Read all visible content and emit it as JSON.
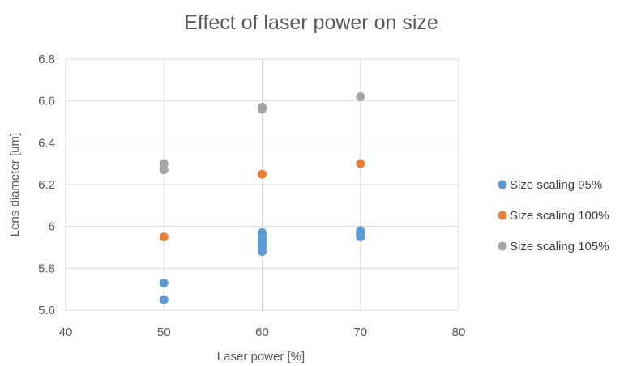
{
  "chart_data": {
    "type": "scatter",
    "title": "Effect of laser power on size",
    "xlabel": "Laser power  [%]",
    "ylabel": "Lens diameter  [um]",
    "xlim": [
      40,
      80
    ],
    "ylim": [
      5.6,
      6.8
    ],
    "xticks": [
      "40",
      "50",
      "60",
      "70",
      "80"
    ],
    "yticks": [
      "5.6",
      "5.8",
      "6",
      "6.2",
      "6.4",
      "6.6",
      "6.8"
    ],
    "grid": true,
    "legend_position": "right",
    "series": [
      {
        "name": "Size scaling 95%",
        "color": "#5b9bd5",
        "points": [
          [
            50,
            5.73
          ],
          [
            50,
            5.65
          ],
          [
            60,
            5.97
          ],
          [
            60,
            5.96
          ],
          [
            60,
            5.94
          ],
          [
            60,
            5.92
          ],
          [
            60,
            5.9
          ],
          [
            60,
            5.88
          ],
          [
            70,
            5.98
          ],
          [
            70,
            5.97
          ],
          [
            70,
            5.96
          ],
          [
            70,
            5.95
          ]
        ]
      },
      {
        "name": "Size scaling 100%",
        "color": "#ed7d31",
        "points": [
          [
            50,
            5.95
          ],
          [
            60,
            6.25
          ],
          [
            70,
            6.3
          ]
        ]
      },
      {
        "name": "Size scaling 105%",
        "color": "#a5a5a5",
        "points": [
          [
            50,
            6.3
          ],
          [
            50,
            6.27
          ],
          [
            60,
            6.57
          ],
          [
            60,
            6.56
          ],
          [
            70,
            6.62
          ]
        ]
      }
    ]
  }
}
